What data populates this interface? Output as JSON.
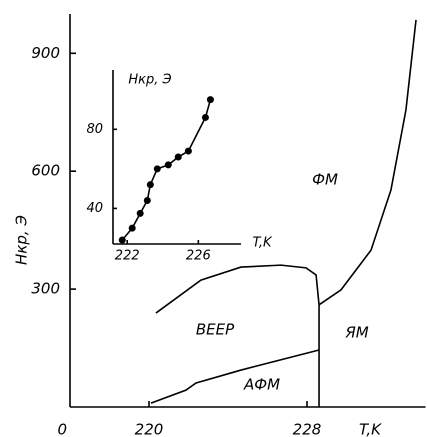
{
  "chart_data": [
    {
      "type": "line",
      "xlabel": "T,K",
      "ylabel": "Hкр, Э",
      "xlim": [
        216,
        234
      ],
      "ylim": [
        0,
        1000
      ],
      "xticks": [
        220,
        228
      ],
      "yticks": [
        0,
        300,
        600,
        900
      ],
      "annotations": [
        "ФМ",
        "ВЕЕР",
        "ЯМ",
        "АФМ"
      ],
      "color": "#000000",
      "series": [
        {
          "x": [
            228.61,
            229.72,
            231.24,
            232.25,
            233.01,
            233.52
          ],
          "values": [
            260,
            298,
            399,
            552,
            756,
            985
          ]
        },
        {
          "x": [
            220.35,
            222.63,
            224.66,
            226.68,
            227.95,
            228.46,
            228.61
          ],
          "values": [
            239,
            323,
            356,
            361,
            354,
            336,
            260
          ]
        },
        {
          "x": [
            228.61,
            228.61
          ],
          "values": [
            260,
            0
          ]
        },
        {
          "x": [
            220.1,
            221.87,
            222.38,
            224.66,
            228.61
          ],
          "values": [
            10,
            43,
            61,
            94,
            145
          ]
        }
      ]
    },
    {
      "type": "scatter",
      "xlabel": "T,K",
      "ylabel": "Hкр, Э",
      "xlim": [
        221.2,
        228.4
      ],
      "ylim": [
        22,
        110
      ],
      "xticks": [
        222,
        226
      ],
      "yticks": [
        40,
        80
      ],
      "color": "#000000",
      "series": [
        {
          "x": [
            221.72,
            222.28,
            222.73,
            223.13,
            223.3,
            223.69,
            224.31,
            224.87,
            225.44,
            226.4,
            226.68
          ],
          "values": [
            24,
            30,
            37.5,
            44,
            52,
            60,
            62,
            66,
            69,
            86,
            95
          ]
        }
      ]
    }
  ]
}
